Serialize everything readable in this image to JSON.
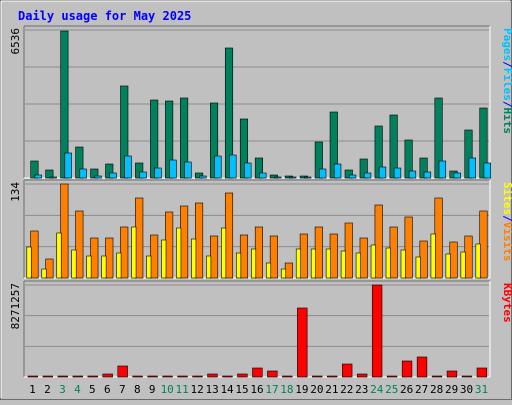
{
  "title": "Daily usage for May 2025",
  "colors": {
    "background": "#c0c0c0",
    "title": "#0000ff",
    "frame_dark": "#6b6b6b",
    "frame_light": "#ffffff",
    "gridline": "#8c8c8c",
    "hits": "#00805c",
    "files": "#00c0ff",
    "pages": "#00c0ff",
    "visits": "#ff8000",
    "sites": "#ffff00",
    "kbytes": "#ff0000",
    "weekend_day": "#00805c",
    "weekday": "#000000"
  },
  "chart_data": [
    {
      "type": "bar",
      "id": "hits-files-pages",
      "ymax_label": "6536",
      "ylim": [
        0,
        6536
      ],
      "legend": [
        "Pages",
        "/",
        "Files",
        "/",
        "Hits"
      ],
      "categories": [
        "1",
        "2",
        "3",
        "4",
        "5",
        "6",
        "7",
        "8",
        "9",
        "10",
        "11",
        "12",
        "13",
        "14",
        "15",
        "16",
        "17",
        "18",
        "19",
        "20",
        "21",
        "22",
        "23",
        "24",
        "25",
        "26",
        "27",
        "28",
        "29",
        "30",
        "31"
      ],
      "series": [
        {
          "name": "Hits",
          "values": [
            750,
            350,
            6500,
            1350,
            400,
            600,
            4050,
            650,
            3450,
            3400,
            3550,
            200,
            3300,
            5750,
            2600,
            900,
            150,
            100,
            80,
            1600,
            2900,
            350,
            850,
            2300,
            2800,
            1700,
            900,
            3550,
            300,
            2100,
            3100
          ]
        },
        {
          "name": "Files",
          "values": [
            150,
            50,
            1100,
            400,
            100,
            200,
            950,
            250,
            450,
            800,
            700,
            100,
            950,
            1000,
            650,
            200,
            50,
            30,
            20,
            400,
            600,
            150,
            200,
            500,
            450,
            300,
            250,
            750,
            200,
            900,
            650
          ]
        }
      ]
    },
    {
      "type": "bar",
      "id": "visits-sites",
      "ymax_label": "134",
      "ylim": [
        0,
        134
      ],
      "legend": [
        "Sites",
        "/",
        "Visits"
      ],
      "categories": [
        "1",
        "2",
        "3",
        "4",
        "5",
        "6",
        "7",
        "8",
        "9",
        "10",
        "11",
        "12",
        "13",
        "14",
        "15",
        "16",
        "17",
        "18",
        "19",
        "20",
        "21",
        "22",
        "23",
        "24",
        "25",
        "26",
        "27",
        "28",
        "29",
        "30",
        "31"
      ],
      "series": [
        {
          "name": "Visits",
          "values": [
            67,
            27,
            134,
            95,
            57,
            57,
            72,
            114,
            62,
            94,
            103,
            107,
            60,
            121,
            61,
            72,
            60,
            21,
            63,
            73,
            63,
            78,
            57,
            104,
            72,
            87,
            53,
            114,
            52,
            60,
            95
          ]
        },
        {
          "name": "Sites",
          "values": [
            44,
            13,
            64,
            40,
            31,
            31,
            36,
            72,
            31,
            54,
            71,
            56,
            31,
            71,
            35,
            42,
            22,
            13,
            41,
            41,
            42,
            38,
            36,
            47,
            43,
            40,
            30,
            63,
            34,
            37,
            48
          ]
        }
      ]
    },
    {
      "type": "bar",
      "id": "kbytes",
      "ymax_label": "8271257",
      "ylim": [
        0,
        8271257
      ],
      "legend": [
        "KBytes"
      ],
      "categories": [
        "1",
        "2",
        "3",
        "4",
        "5",
        "6",
        "7",
        "8",
        "9",
        "10",
        "11",
        "12",
        "13",
        "14",
        "15",
        "16",
        "17",
        "18",
        "19",
        "20",
        "21",
        "22",
        "23",
        "24",
        "25",
        "26",
        "27",
        "28",
        "29",
        "30",
        "31"
      ],
      "series": [
        {
          "name": "KBytes",
          "values": [
            30000,
            30000,
            30000,
            30000,
            30000,
            300000,
            1000000,
            30000,
            30000,
            30000,
            30000,
            30000,
            300000,
            30000,
            300000,
            850000,
            550000,
            30000,
            6200000,
            30000,
            30000,
            1200000,
            300000,
            8271257,
            30000,
            1450000,
            1800000,
            30000,
            550000,
            30000,
            800000
          ]
        }
      ]
    }
  ]
}
